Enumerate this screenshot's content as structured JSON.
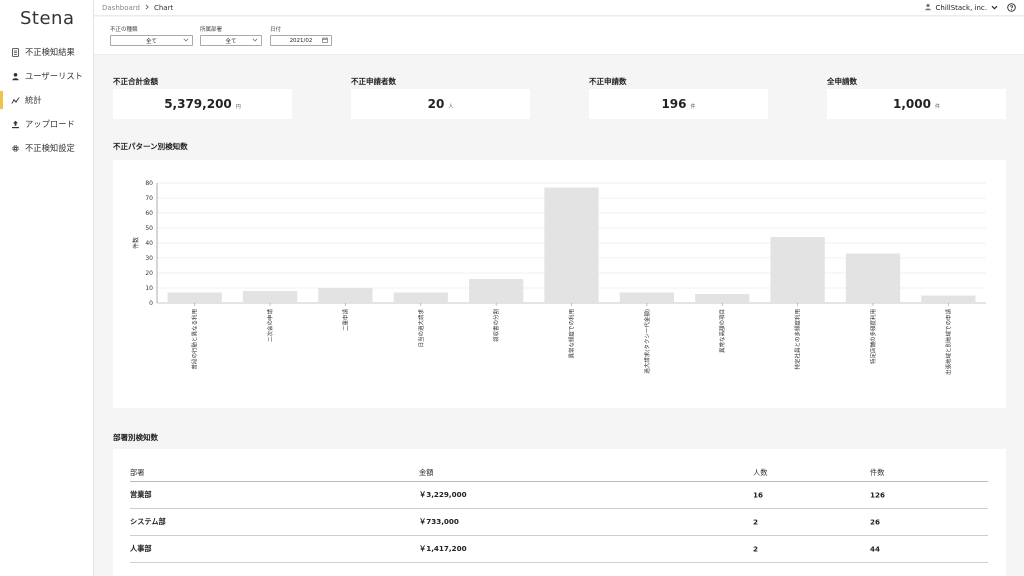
{
  "app": {
    "logo": "Stena"
  },
  "sidebar": {
    "items": [
      {
        "label": "不正検知結果",
        "icon": "document-icon"
      },
      {
        "label": "ユーザーリスト",
        "icon": "user-icon"
      },
      {
        "label": "統計",
        "icon": "chart-icon",
        "active": true
      },
      {
        "label": "アップロード",
        "icon": "upload-icon"
      },
      {
        "label": "不正検知設定",
        "icon": "gear-icon"
      }
    ]
  },
  "header": {
    "breadcrumb": [
      "Dashboard",
      "Chart"
    ],
    "user": "ChillStack, inc."
  },
  "filters": [
    {
      "label": "不正の種類",
      "value": "全て"
    },
    {
      "label": "所属部署",
      "value": "全て"
    },
    {
      "label": "日付",
      "value": "2021/02"
    }
  ],
  "stats": [
    {
      "title": "不正合計金額",
      "value": "5,379,200",
      "unit": "円"
    },
    {
      "title": "不正申請者数",
      "value": "20",
      "unit": "人"
    },
    {
      "title": "不正申請数",
      "value": "196",
      "unit": "件"
    },
    {
      "title": "全申請数",
      "value": "1,000",
      "unit": "件"
    }
  ],
  "chart_section_title": "不正パターン別検知数",
  "chart_data": {
    "type": "bar",
    "ylabel": "件数",
    "xlabel": "",
    "ylim": [
      0,
      80
    ],
    "yticks": [
      0,
      10,
      20,
      30,
      40,
      50,
      60,
      70,
      80
    ],
    "grid": true,
    "color": "#e3e3e3",
    "categories": [
      "普段の行動と異なる利用",
      "二次会の申請",
      "二重申請",
      "日当の過大請求",
      "領収書の分割",
      "異常な頻度での利用",
      "過大請求(タクシー代金額)",
      "異常な高額の項目",
      "特定社員との多頻度利用",
      "特定店舗の多頻度利用",
      "出張地域と別地域での申請"
    ],
    "values": [
      7,
      8,
      10,
      7,
      16,
      77,
      7,
      6,
      44,
      33,
      5
    ]
  },
  "dept_section_title": "部署別検知数",
  "dept_table": {
    "headers": [
      "部署",
      "金額",
      "人数",
      "件数"
    ],
    "rows": [
      [
        "営業部",
        "￥3,229,000",
        "16",
        "126"
      ],
      [
        "システム部",
        "￥733,000",
        "2",
        "26"
      ],
      [
        "人事部",
        "￥1,417,200",
        "2",
        "44"
      ]
    ]
  }
}
